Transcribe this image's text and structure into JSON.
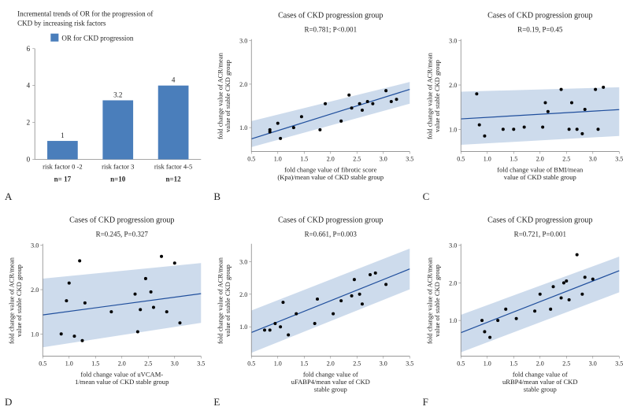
{
  "panelA": {
    "label": "A",
    "title_lines": [
      "Incremental trends of OR for the progression of",
      "CKD by increasing risk factors"
    ],
    "legend_label": "OR for CKD progression",
    "categories": [
      "risk factor 0 -2",
      "risk factor 3",
      "risk factor 4-5"
    ],
    "n_labels": [
      "n= 17",
      "n=10",
      "n=12"
    ],
    "values": [
      1,
      3.2,
      4
    ],
    "value_labels": [
      "1",
      "3.2",
      "4"
    ],
    "ylim": [
      0,
      6
    ],
    "yticks": [
      0,
      2,
      4,
      6
    ],
    "bar_color": "#4a7ebb",
    "bar_width": 0.55
  },
  "scatter_common": {
    "title": "Cases of CKD progression group",
    "ylabel_lines": [
      "fold change value of ACR/mean",
      "value of stable CKD group"
    ],
    "xlim": [
      0.5,
      3.5
    ],
    "xticks": [
      0.5,
      1.0,
      1.5,
      2.0,
      2.5,
      3.0,
      3.5
    ],
    "ylim": [
      0.5,
      3.0
    ],
    "yticks": [
      1.0,
      2.0,
      3.0
    ],
    "band_color": "#b8cce4",
    "line_color": "#1f4e9c",
    "point_color": "#000000",
    "marker_size": 2
  },
  "panelB": {
    "label": "B",
    "stat": "R=0.781; P<0.001",
    "xlabel_lines": [
      "fold change value of fibrotic score",
      "(Kpa)/mean value of CKD stable group"
    ],
    "slope": 0.38,
    "intercept": 0.55,
    "band_top0": 1.15,
    "band_bot0": 0.55,
    "band_top1": 2.05,
    "band_bot1": 1.55,
    "points": [
      [
        0.85,
        0.9
      ],
      [
        0.85,
        0.95
      ],
      [
        1.0,
        1.1
      ],
      [
        1.05,
        0.75
      ],
      [
        1.3,
        1.0
      ],
      [
        1.45,
        1.25
      ],
      [
        1.8,
        0.95
      ],
      [
        1.9,
        1.55
      ],
      [
        2.2,
        1.15
      ],
      [
        2.35,
        1.75
      ],
      [
        2.4,
        1.45
      ],
      [
        2.55,
        1.55
      ],
      [
        2.6,
        1.4
      ],
      [
        2.7,
        1.6
      ],
      [
        2.8,
        1.55
      ],
      [
        3.05,
        1.85
      ],
      [
        3.15,
        1.6
      ],
      [
        3.25,
        1.65
      ]
    ]
  },
  "panelC": {
    "label": "C",
    "stat": "R=0.19, P=0.45",
    "xlabel_lines": [
      "fold change value of BMI/mean",
      "value of CKD stable group"
    ],
    "slope": 0.07,
    "intercept": 1.2,
    "band_top0": 1.85,
    "band_bot0": 0.65,
    "band_top1": 1.95,
    "band_bot1": 0.85,
    "points": [
      [
        0.8,
        1.8
      ],
      [
        0.85,
        1.1
      ],
      [
        0.95,
        0.85
      ],
      [
        1.3,
        1.0
      ],
      [
        1.5,
        1.0
      ],
      [
        1.7,
        1.05
      ],
      [
        2.05,
        1.05
      ],
      [
        2.1,
        1.6
      ],
      [
        2.15,
        1.4
      ],
      [
        2.4,
        1.9
      ],
      [
        2.55,
        1.0
      ],
      [
        2.6,
        1.6
      ],
      [
        2.7,
        1.0
      ],
      [
        2.8,
        0.9
      ],
      [
        2.85,
        1.45
      ],
      [
        3.05,
        1.9
      ],
      [
        3.1,
        1.0
      ],
      [
        3.2,
        1.95
      ]
    ]
  },
  "panelD": {
    "label": "D",
    "stat": "R=0.245, P=0.327",
    "xlabel_lines": [
      "fold change value of uVCAM-",
      "1/mean value of CKD stable group"
    ],
    "slope": 0.16,
    "intercept": 1.35,
    "band_top0": 2.25,
    "band_bot0": 0.7,
    "band_top1": 2.6,
    "band_bot1": 1.25,
    "points": [
      [
        0.85,
        1.0
      ],
      [
        0.95,
        1.75
      ],
      [
        1.0,
        2.15
      ],
      [
        1.1,
        0.95
      ],
      [
        1.2,
        2.65
      ],
      [
        1.25,
        0.85
      ],
      [
        1.3,
        1.7
      ],
      [
        1.8,
        1.5
      ],
      [
        2.25,
        1.9
      ],
      [
        2.3,
        1.05
      ],
      [
        2.35,
        1.55
      ],
      [
        2.45,
        2.25
      ],
      [
        2.55,
        1.95
      ],
      [
        2.6,
        1.6
      ],
      [
        2.75,
        2.75
      ],
      [
        2.85,
        1.5
      ],
      [
        3.0,
        2.6
      ],
      [
        3.1,
        1.25
      ]
    ]
  },
  "panelE": {
    "label": "E",
    "stat": "R=0.661, P=0.003",
    "xlabel_lines": [
      "fold change value of",
      "uFABP4/mean value of CKD",
      "stable group"
    ],
    "slope": 0.65,
    "intercept": 0.5,
    "band_top0": 1.5,
    "band_bot0": 0.2,
    "band_top1": 3.4,
    "band_bot1": 2.15,
    "points": [
      [
        0.75,
        0.9
      ],
      [
        0.85,
        0.9
      ],
      [
        0.95,
        1.1
      ],
      [
        1.05,
        1.0
      ],
      [
        1.1,
        1.75
      ],
      [
        1.2,
        0.75
      ],
      [
        1.35,
        1.4
      ],
      [
        1.7,
        1.1
      ],
      [
        1.75,
        1.85
      ],
      [
        2.05,
        1.4
      ],
      [
        2.2,
        1.8
      ],
      [
        2.4,
        1.95
      ],
      [
        2.45,
        2.45
      ],
      [
        2.55,
        2.0
      ],
      [
        2.6,
        1.7
      ],
      [
        2.75,
        2.6
      ],
      [
        2.85,
        2.65
      ],
      [
        3.05,
        2.3
      ]
    ]
  },
  "panelF": {
    "label": "F",
    "stat": "R=0.721, P=0.001",
    "xlabel_lines": [
      "fold change value of",
      "uRBP4/mean value of CKD",
      "stable group"
    ],
    "slope": 0.55,
    "intercept": 0.4,
    "band_top0": 1.15,
    "band_bot0": 0.15,
    "band_top1": 2.7,
    "band_bot1": 1.75,
    "points": [
      [
        0.9,
        1.0
      ],
      [
        0.95,
        0.7
      ],
      [
        1.05,
        0.55
      ],
      [
        1.2,
        1.0
      ],
      [
        1.35,
        1.3
      ],
      [
        1.55,
        1.05
      ],
      [
        1.9,
        1.25
      ],
      [
        2.0,
        1.7
      ],
      [
        2.2,
        1.3
      ],
      [
        2.25,
        1.9
      ],
      [
        2.4,
        1.6
      ],
      [
        2.45,
        2.0
      ],
      [
        2.5,
        2.05
      ],
      [
        2.55,
        1.55
      ],
      [
        2.7,
        2.75
      ],
      [
        2.8,
        1.7
      ],
      [
        2.85,
        2.15
      ],
      [
        3.0,
        2.1
      ]
    ]
  }
}
